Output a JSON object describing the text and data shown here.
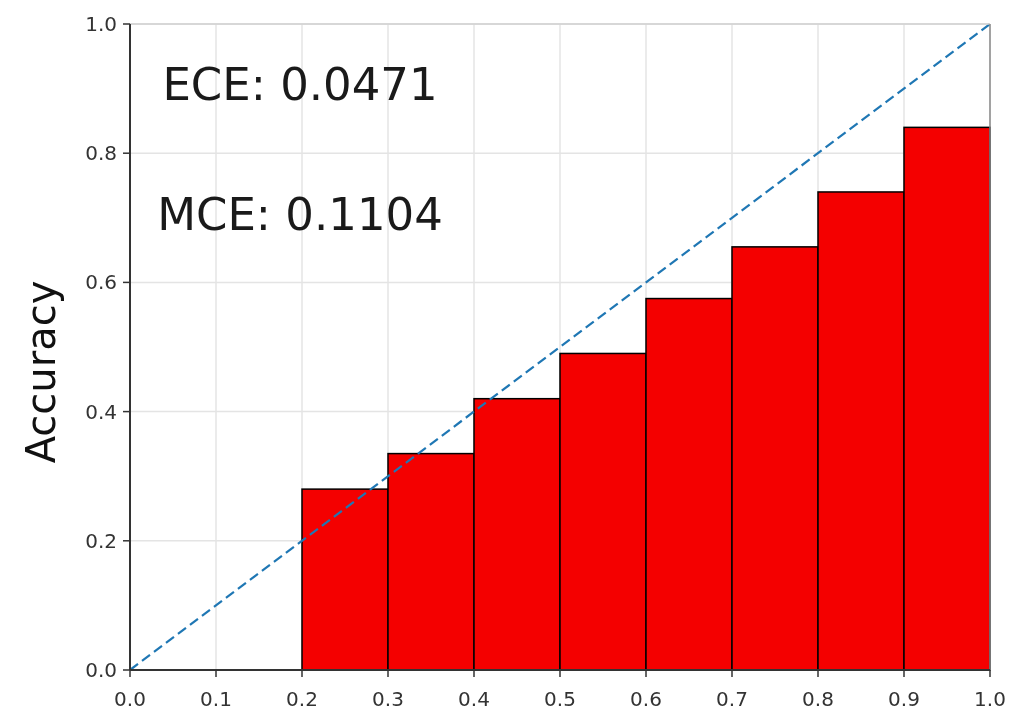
{
  "chart_data": {
    "type": "histogram",
    "ylabel": "Accuracy",
    "annotations": [
      "ECE: 0.0471",
      "MCE: 0.1104"
    ],
    "bins": [
      0.2,
      0.3,
      0.4,
      0.5,
      0.6,
      0.7,
      0.8,
      0.9,
      1.0
    ],
    "series": [
      {
        "color": "#f40000",
        "values": [
          0.28,
          0.335,
          0.42,
          0.49,
          0.575,
          0.655,
          0.74,
          0.84
        ]
      },
      {
        "type": "line",
        "x": [
          0,
          1
        ],
        "values": [
          0,
          1
        ],
        "color": "#1f77b4",
        "line_style": "dashed"
      }
    ],
    "xlim": [
      0,
      1
    ],
    "ylim": [
      0,
      1
    ],
    "xticks": [
      {
        "value": 0,
        "label": "0.0"
      },
      {
        "value": 0.1,
        "label": "0.1"
      },
      {
        "value": 0.2,
        "label": "0.2"
      },
      {
        "value": 0.3,
        "label": "0.3"
      },
      {
        "value": 0.4,
        "label": "0.4"
      },
      {
        "value": 0.5,
        "label": "0.5"
      },
      {
        "value": 0.6,
        "label": "0.6"
      },
      {
        "value": 0.7,
        "label": "0.7"
      },
      {
        "value": 0.8,
        "label": "0.8"
      },
      {
        "value": 0.9,
        "label": "0.9"
      },
      {
        "value": 1,
        "label": "1.0"
      }
    ],
    "yticks": [
      {
        "value": 0,
        "label": "0.0"
      },
      {
        "value": 0.2,
        "label": "0.2"
      },
      {
        "value": 0.4,
        "label": "0.4"
      },
      {
        "value": 0.6,
        "label": "0.6"
      },
      {
        "value": 0.8,
        "label": "0.8"
      },
      {
        "value": 1,
        "label": "1.0"
      }
    ],
    "grid": true
  }
}
